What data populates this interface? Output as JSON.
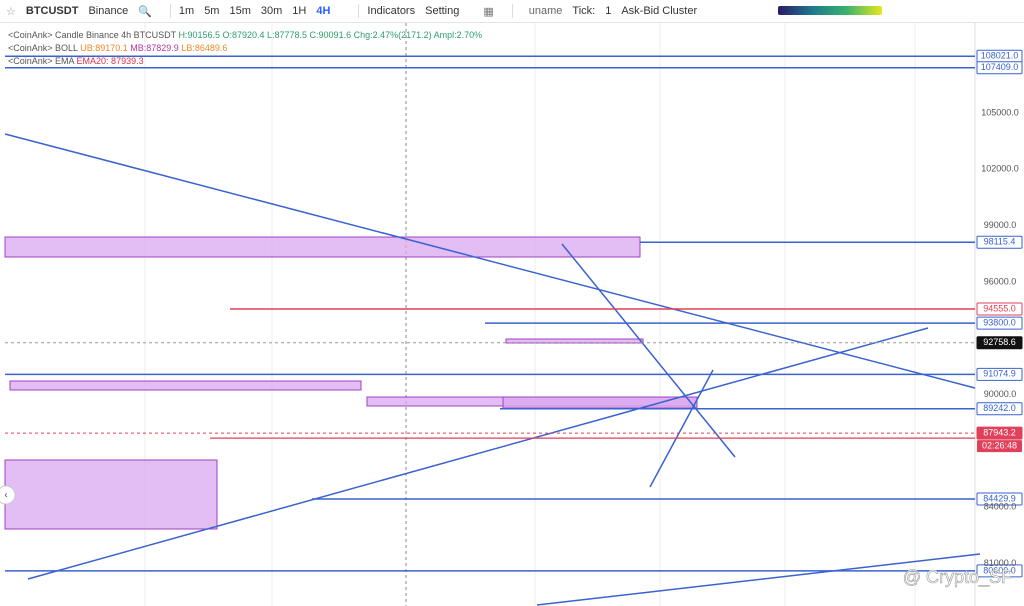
{
  "toolbar": {
    "symbol": "BTCUSDT",
    "exchange": "Binance",
    "intervals": [
      "1m",
      "5m",
      "15m",
      "30m",
      "1H",
      "4H"
    ],
    "active_interval": 5,
    "indicators": "Indicators",
    "setting": "Setting",
    "user": "uname",
    "tick_label": "Tick:",
    "tick_value": "1",
    "cluster": "Ask-Bid Cluster"
  },
  "legend": [
    [
      {
        "text": "<CoinAnk> Candle  Binance 4h BTCUSDT ",
        "color": "#555"
      },
      {
        "text": "H:90156.5  O:87920.4  L:87778.5  C:90091.6  Chg:2.47%(2171.2)  Ampl:2.70%",
        "color": "#2e9e6a"
      }
    ],
    [
      {
        "text": "<CoinAnk> BOLL ",
        "color": "#555"
      },
      {
        "text": "UB:89170.1",
        "color": "#f08a24"
      },
      {
        "text": " MB:87829.9",
        "color": "#b03a9a"
      },
      {
        "text": " LB:86489.6",
        "color": "#f08a24"
      }
    ],
    [
      {
        "text": "<CoinAnk> EMA ",
        "color": "#555"
      },
      {
        "text": "EMA20: 87939.3",
        "color": "#d8324a"
      }
    ]
  ],
  "price_axis": [
    "105000.0",
    "102000.0",
    "99000.0",
    "96000.0",
    "90000.0",
    "84000.0",
    "81000.0"
  ],
  "levels": [
    {
      "label": "108021.0",
      "color": "#3a62d0"
    },
    {
      "label": "107409.0",
      "color": "#3a62d0"
    },
    {
      "label": "98115.4",
      "color": "#3a62d0"
    },
    {
      "label": "94555.0",
      "color": "#e0405a"
    },
    {
      "label": "93800.0",
      "color": "#3a62d0"
    },
    {
      "label": "92758.6",
      "color": "#111111",
      "style": "dashed"
    },
    {
      "label": "91074.9",
      "color": "#3a62d0"
    },
    {
      "label": "89242.0",
      "color": "#3a62d0"
    },
    {
      "label": "87943.2",
      "color": "#e0405a",
      "style": "dashed"
    },
    {
      "label": "84429.9",
      "color": "#3a62d0"
    },
    {
      "label": "80600.0",
      "color": "#3a62d0"
    }
  ],
  "countdown": "02:26:48",
  "watermark": "@ Crypto_SF"
}
